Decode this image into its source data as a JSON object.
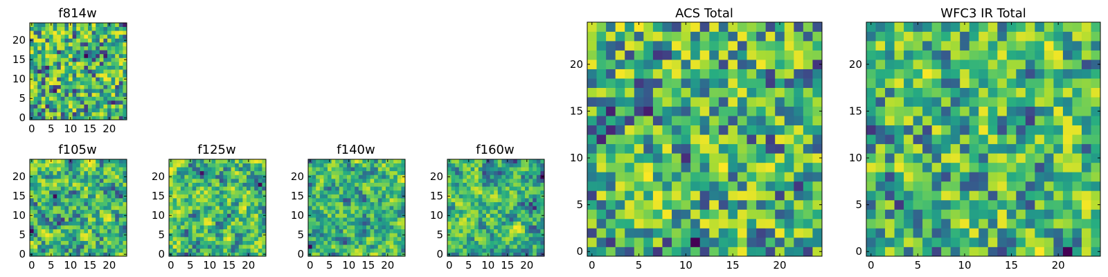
{
  "figure": {
    "colormap": "viridis",
    "panel_count": 7
  },
  "chart_data": [
    {
      "type": "heatmap",
      "title": "f814w",
      "grid": [
        25,
        25
      ],
      "seed": 11,
      "xticks": [
        0,
        5,
        10,
        15,
        20
      ],
      "yticks": [
        0,
        5,
        10,
        15,
        20
      ],
      "xlim": [
        -0.5,
        24.5
      ],
      "ylim": [
        -0.5,
        24.5
      ],
      "smooth": 0.15
    },
    {
      "type": "heatmap",
      "title": "f105w",
      "grid": [
        25,
        25
      ],
      "seed": 23,
      "xticks": [
        0,
        5,
        10,
        15,
        20
      ],
      "yticks": [
        0,
        5,
        10,
        15,
        20
      ],
      "xlim": [
        -0.5,
        24.5
      ],
      "ylim": [
        -0.5,
        24.5
      ],
      "smooth": 0.6
    },
    {
      "type": "heatmap",
      "title": "f125w",
      "grid": [
        25,
        25
      ],
      "seed": 37,
      "xticks": [
        0,
        5,
        10,
        15,
        20
      ],
      "yticks": [
        0,
        5,
        10,
        15,
        20
      ],
      "xlim": [
        -0.5,
        24.5
      ],
      "ylim": [
        -0.5,
        24.5
      ],
      "smooth": 0.6
    },
    {
      "type": "heatmap",
      "title": "f140w",
      "grid": [
        25,
        25
      ],
      "seed": 41,
      "xticks": [
        0,
        5,
        10,
        15,
        20
      ],
      "yticks": [
        0,
        5,
        10,
        15,
        20
      ],
      "xlim": [
        -0.5,
        24.5
      ],
      "ylim": [
        -0.5,
        24.5
      ],
      "smooth": 0.6
    },
    {
      "type": "heatmap",
      "title": "f160w",
      "grid": [
        25,
        25
      ],
      "seed": 53,
      "xticks": [
        0,
        5,
        10,
        15,
        20
      ],
      "yticks": [
        0,
        5,
        10,
        15,
        20
      ],
      "xlim": [
        -0.5,
        24.5
      ],
      "ylim": [
        -0.5,
        24.5
      ],
      "smooth": 0.6
    },
    {
      "type": "heatmap",
      "title": "ACS Total",
      "grid": [
        25,
        25
      ],
      "seed": 67,
      "xticks": [
        0,
        5,
        10,
        15,
        20
      ],
      "yticks": [
        0,
        5,
        10,
        15,
        20
      ],
      "xlim": [
        -0.5,
        24.5
      ],
      "ylim": [
        -0.5,
        24.5
      ],
      "smooth": 0.2
    },
    {
      "type": "heatmap",
      "title": "WFC3 IR Total",
      "grid": [
        25,
        25
      ],
      "seed": 79,
      "xticks": [
        0,
        5,
        10,
        15,
        20
      ],
      "yticks": [
        0,
        5,
        10,
        15,
        20
      ],
      "xlim": [
        -0.5,
        24.5
      ],
      "ylim": [
        -0.5,
        24.5
      ],
      "smooth": 0.25
    }
  ]
}
